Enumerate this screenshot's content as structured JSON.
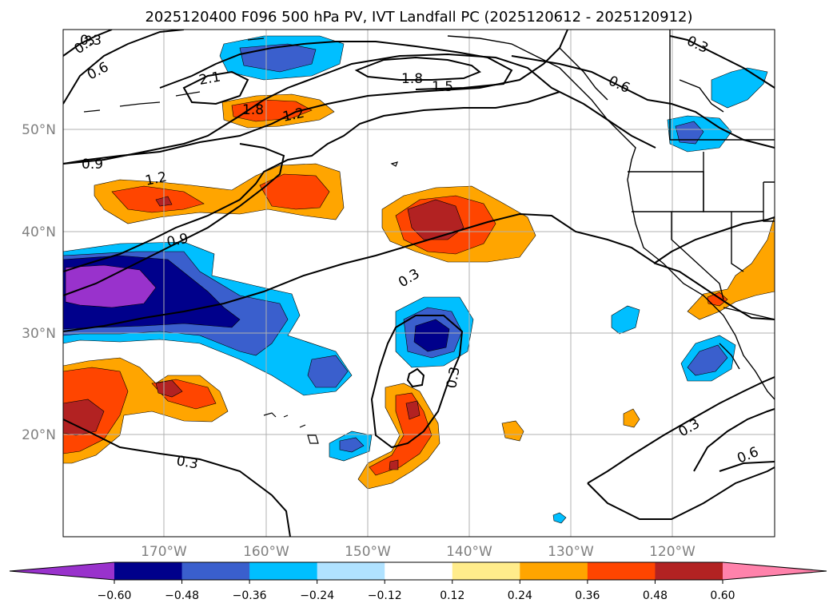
{
  "title": "2025120400 F096 500 hPa PV, IVT Landfall PC (2025120612 - 2025120912)",
  "lat_labels": [
    "50°N",
    "40°N",
    "30°N",
    "20°N"
  ],
  "lon_labels": [
    "170°W",
    "160°W",
    "150°W",
    "140°W",
    "130°W",
    "120°W"
  ],
  "contour_labels": [
    "0.3",
    "0.6",
    "0.9",
    "1.2",
    "1.5",
    "1.8",
    "2.1",
    "0.3",
    "1.8",
    "1.2",
    "0.6",
    "0.3",
    "0.3",
    "0.3",
    "0.3",
    "0.6",
    "0.9",
    "0.3"
  ],
  "colorbar": {
    "ticks": [
      "−0.60",
      "−0.48",
      "−0.36",
      "−0.24",
      "−0.12",
      "0.12",
      "0.24",
      "0.36",
      "0.48",
      "0.60"
    ],
    "colors": [
      "#9932cc",
      "#00008b",
      "#3a5fcd",
      "#00bfff",
      "#b0e2ff",
      "#ffffff",
      "#ffec8b",
      "#ffa500",
      "#ff4500",
      "#b22222",
      "#ff82ab"
    ]
  }
}
